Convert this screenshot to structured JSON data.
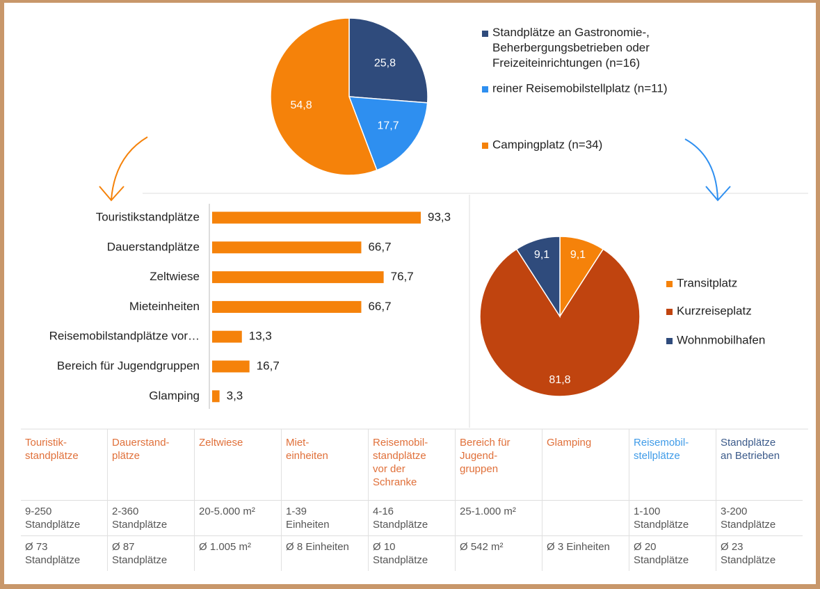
{
  "chart_data": [
    {
      "type": "pie",
      "series": [
        {
          "name": "Standplätze an Gastronomie-,\nBeherbergungsbetrieben oder\nFreizeiteinrichtungen (n=16)",
          "color": "#2f4b7c",
          "values": [
            25.8
          ],
          "value_labels": [
            "25,8"
          ]
        },
        {
          "name": "reiner Reisemobilstellplatz (n=11)",
          "color": "#2e8ff0",
          "values": [
            17.7
          ],
          "value_labels": [
            "17,7"
          ]
        },
        {
          "name": "Campingplatz (n=34)",
          "color": "#f5820a",
          "values": [
            54.8
          ],
          "value_labels": [
            "54,8"
          ]
        }
      ]
    },
    {
      "type": "hbar",
      "categories": [
        "Touristikstandplätze",
        "Dauerstandplätze",
        "Zeltwiese",
        "Mieteinheiten",
        "Reisemobilstandplätze vor…",
        "Bereich für Jugendgruppen",
        "Glamping"
      ],
      "values": [
        93.3,
        66.7,
        76.7,
        66.7,
        13.3,
        16.7,
        3.3
      ],
      "value_labels": [
        "93,3",
        "66,7",
        "76,7",
        "66,7",
        "13,3",
        "16,7",
        "3,3"
      ],
      "color": "#f5820a"
    },
    {
      "type": "pie",
      "series": [
        {
          "name": "Transitplatz",
          "color": "#f5820a",
          "values": [
            9.1
          ],
          "value_labels": [
            "9,1"
          ]
        },
        {
          "name": "Kurzreiseplatz",
          "color": "#c0440f",
          "values": [
            81.8
          ],
          "value_labels": [
            "81,8"
          ]
        },
        {
          "name": "Wohnmobilhafen",
          "color": "#2f4b7c",
          "values": [
            9.1
          ],
          "value_labels": [
            "9,1"
          ]
        }
      ]
    }
  ],
  "table": {
    "header": [
      "Touristik-\nstandplätze",
      "Dauerstand-\nplätze",
      "Zeltwiese",
      "Miet-\neinheiten",
      "Reisemobil-\nstandplätze\nvor der\nSchranke",
      "Bereich für\nJugend-\ngruppen",
      "Glamping",
      "Reisemobil-\nstellplätze",
      "Standplätze\nan Betrieben"
    ],
    "header_colors": [
      "#e0703a",
      "#e0703a",
      "#e0703a",
      "#e0703a",
      "#e0703a",
      "#e0703a",
      "#e0703a",
      "#3f9be8",
      "#3b5a8a"
    ],
    "rows": [
      [
        "9-250\nStandplätze",
        "2-360\nStandplätze",
        "20-5.000 m²",
        "1-39\nEinheiten",
        "4-16\nStandplätze",
        "25-1.000 m²",
        null,
        "1-100\nStandplätze",
        "3-200\nStandplätze"
      ],
      [
        "Ø 73\nStandplätze",
        "Ø 87\nStandplätze",
        "Ø 1.005 m²",
        "Ø 8 Einheiten",
        "Ø 10\nStandplätze",
        "Ø 542 m²",
        "Ø 3 Einheiten",
        "Ø 20\nStandplätze",
        "Ø 23\nStandplätze"
      ]
    ]
  }
}
